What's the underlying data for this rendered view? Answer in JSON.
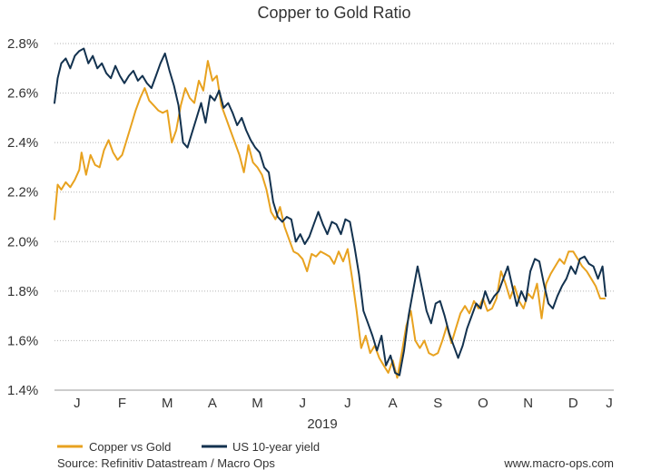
{
  "chart_data": {
    "type": "line",
    "title": "Copper to Gold Ratio",
    "xlabel": "2019",
    "ylabel": "",
    "ylim": [
      1.4,
      2.8
    ],
    "yticks": [
      {
        "value": 1.4,
        "label": "1.4%"
      },
      {
        "value": 1.6,
        "label": "1.6%"
      },
      {
        "value": 1.8,
        "label": "1.8%"
      },
      {
        "value": 2.0,
        "label": "2.0%"
      },
      {
        "value": 2.2,
        "label": "2.2%"
      },
      {
        "value": 2.4,
        "label": "2.4%"
      },
      {
        "value": 2.6,
        "label": "2.6%"
      },
      {
        "value": 2.8,
        "label": "2.8%"
      }
    ],
    "xlim": [
      0,
      12.4
    ],
    "xticks": [
      {
        "value": 0.5,
        "label": "J"
      },
      {
        "value": 1.5,
        "label": "F"
      },
      {
        "value": 2.5,
        "label": "M"
      },
      {
        "value": 3.5,
        "label": "A"
      },
      {
        "value": 4.5,
        "label": "M"
      },
      {
        "value": 5.5,
        "label": "J"
      },
      {
        "value": 6.5,
        "label": "J"
      },
      {
        "value": 7.5,
        "label": "A"
      },
      {
        "value": 8.5,
        "label": "S"
      },
      {
        "value": 9.5,
        "label": "O"
      },
      {
        "value": 10.5,
        "label": "N"
      },
      {
        "value": 11.5,
        "label": "D"
      },
      {
        "value": 12.3,
        "label": "J"
      }
    ],
    "grid": true,
    "legend_position": "bottom-left",
    "series": [
      {
        "name": "Copper vs Gold",
        "color": "#E8A21F",
        "x": [
          0,
          0.07,
          0.15,
          0.25,
          0.35,
          0.45,
          0.55,
          0.6,
          0.7,
          0.8,
          0.9,
          1.0,
          1.1,
          1.2,
          1.3,
          1.4,
          1.5,
          1.6,
          1.7,
          1.8,
          1.9,
          2.0,
          2.1,
          2.2,
          2.3,
          2.4,
          2.5,
          2.6,
          2.7,
          2.8,
          2.9,
          3.0,
          3.1,
          3.2,
          3.3,
          3.4,
          3.5,
          3.6,
          3.7,
          3.8,
          3.9,
          4.0,
          4.1,
          4.2,
          4.3,
          4.4,
          4.5,
          4.6,
          4.7,
          4.8,
          4.9,
          5.0,
          5.1,
          5.2,
          5.3,
          5.4,
          5.5,
          5.6,
          5.7,
          5.8,
          5.9,
          6.0,
          6.1,
          6.2,
          6.3,
          6.4,
          6.5,
          6.6,
          6.7,
          6.8,
          6.9,
          7.0,
          7.1,
          7.2,
          7.3,
          7.4,
          7.5,
          7.6,
          7.7,
          7.8,
          7.9,
          8.0,
          8.1,
          8.2,
          8.3,
          8.4,
          8.5,
          8.6,
          8.7,
          8.8,
          8.9,
          9.0,
          9.1,
          9.2,
          9.3,
          9.4,
          9.5,
          9.6,
          9.7,
          9.8,
          9.9,
          10.0,
          10.1,
          10.2,
          10.3,
          10.4,
          10.5,
          10.6,
          10.7,
          10.8,
          10.9,
          11.0,
          11.1,
          11.2,
          11.3,
          11.4,
          11.5,
          11.6,
          11.7,
          11.8,
          11.9,
          12.0,
          12.1,
          12.2
        ],
        "values": [
          2.09,
          2.23,
          2.21,
          2.24,
          2.22,
          2.25,
          2.29,
          2.36,
          2.27,
          2.35,
          2.31,
          2.3,
          2.37,
          2.41,
          2.36,
          2.33,
          2.35,
          2.41,
          2.47,
          2.53,
          2.58,
          2.62,
          2.57,
          2.55,
          2.53,
          2.52,
          2.53,
          2.4,
          2.45,
          2.55,
          2.62,
          2.58,
          2.56,
          2.65,
          2.61,
          2.73,
          2.65,
          2.67,
          2.55,
          2.5,
          2.45,
          2.4,
          2.35,
          2.28,
          2.39,
          2.32,
          2.3,
          2.27,
          2.21,
          2.12,
          2.09,
          2.14,
          2.06,
          2.01,
          1.96,
          1.95,
          1.93,
          1.88,
          1.95,
          1.94,
          1.96,
          1.95,
          1.94,
          1.91,
          1.96,
          1.92,
          1.97,
          1.85,
          1.72,
          1.57,
          1.62,
          1.55,
          1.58,
          1.53,
          1.5,
          1.47,
          1.52,
          1.45,
          1.55,
          1.66,
          1.72,
          1.6,
          1.57,
          1.6,
          1.55,
          1.54,
          1.55,
          1.6,
          1.66,
          1.59,
          1.65,
          1.71,
          1.74,
          1.71,
          1.76,
          1.73,
          1.77,
          1.72,
          1.73,
          1.77,
          1.88,
          1.83,
          1.77,
          1.82,
          1.76,
          1.73,
          1.79,
          1.77,
          1.83,
          1.69,
          1.83,
          1.87,
          1.9,
          1.93,
          1.91,
          1.96,
          1.96,
          1.93,
          1.9,
          1.88,
          1.85,
          1.82,
          1.77,
          1.77
        ]
      },
      {
        "name": "US 10-year yield",
        "color": "#13324F",
        "x": [
          0,
          0.07,
          0.15,
          0.25,
          0.35,
          0.45,
          0.55,
          0.65,
          0.75,
          0.85,
          0.95,
          1.05,
          1.15,
          1.25,
          1.35,
          1.45,
          1.55,
          1.65,
          1.75,
          1.85,
          1.95,
          2.05,
          2.15,
          2.25,
          2.35,
          2.45,
          2.55,
          2.65,
          2.75,
          2.85,
          2.95,
          3.05,
          3.15,
          3.25,
          3.35,
          3.45,
          3.55,
          3.65,
          3.75,
          3.85,
          3.95,
          4.05,
          4.15,
          4.25,
          4.35,
          4.45,
          4.55,
          4.65,
          4.75,
          4.85,
          4.95,
          5.05,
          5.15,
          5.25,
          5.35,
          5.45,
          5.55,
          5.65,
          5.75,
          5.85,
          5.95,
          6.05,
          6.15,
          6.25,
          6.35,
          6.45,
          6.55,
          6.65,
          6.75,
          6.85,
          6.95,
          7.05,
          7.15,
          7.25,
          7.35,
          7.45,
          7.55,
          7.65,
          7.75,
          7.85,
          7.95,
          8.05,
          8.15,
          8.25,
          8.35,
          8.45,
          8.55,
          8.65,
          8.75,
          8.85,
          8.95,
          9.05,
          9.15,
          9.25,
          9.35,
          9.45,
          9.55,
          9.65,
          9.75,
          9.85,
          9.95,
          10.05,
          10.15,
          10.25,
          10.35,
          10.45,
          10.55,
          10.65,
          10.75,
          10.85,
          10.95,
          11.05,
          11.15,
          11.25,
          11.35,
          11.45,
          11.55,
          11.65,
          11.75,
          11.85,
          11.95,
          12.05,
          12.15,
          12.22
        ],
        "values": [
          2.56,
          2.66,
          2.72,
          2.74,
          2.7,
          2.75,
          2.77,
          2.78,
          2.72,
          2.75,
          2.7,
          2.72,
          2.68,
          2.66,
          2.71,
          2.67,
          2.64,
          2.67,
          2.69,
          2.65,
          2.67,
          2.64,
          2.62,
          2.67,
          2.72,
          2.76,
          2.69,
          2.63,
          2.55,
          2.4,
          2.38,
          2.44,
          2.5,
          2.56,
          2.48,
          2.59,
          2.57,
          2.61,
          2.54,
          2.56,
          2.52,
          2.47,
          2.5,
          2.45,
          2.41,
          2.38,
          2.36,
          2.3,
          2.28,
          2.16,
          2.1,
          2.08,
          2.1,
          2.09,
          2.0,
          2.03,
          1.99,
          2.02,
          2.07,
          2.12,
          2.07,
          2.03,
          2.08,
          2.07,
          2.03,
          2.09,
          2.08,
          1.98,
          1.87,
          1.72,
          1.67,
          1.62,
          1.56,
          1.62,
          1.5,
          1.54,
          1.47,
          1.46,
          1.56,
          1.7,
          1.8,
          1.9,
          1.81,
          1.72,
          1.67,
          1.75,
          1.76,
          1.7,
          1.63,
          1.58,
          1.53,
          1.58,
          1.65,
          1.7,
          1.75,
          1.73,
          1.8,
          1.75,
          1.78,
          1.8,
          1.85,
          1.9,
          1.82,
          1.74,
          1.8,
          1.76,
          1.88,
          1.93,
          1.92,
          1.83,
          1.75,
          1.73,
          1.78,
          1.82,
          1.85,
          1.9,
          1.87,
          1.93,
          1.94,
          1.91,
          1.9,
          1.85,
          1.9,
          1.78
        ]
      }
    ],
    "legend": [
      {
        "label": "Copper vs Gold",
        "color": "#E8A21F"
      },
      {
        "label": "US 10-year yield",
        "color": "#13324F"
      }
    ],
    "footer": {
      "source": "Source: Refinitiv Datastream / Macro Ops",
      "website": "www.macro-ops.com"
    }
  }
}
